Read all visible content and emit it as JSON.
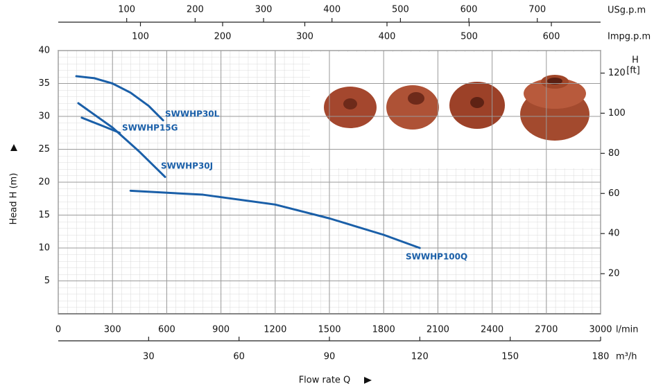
{
  "chart_data": {
    "type": "line",
    "x_label": "Flow rate Q",
    "y_label": "Head H (m)",
    "y2_label": [
      "H",
      "[ft]"
    ],
    "x_unit": "l/min",
    "xlim": [
      0,
      3000
    ],
    "xticks": [
      0,
      300,
      600,
      900,
      1200,
      1500,
      1800,
      2100,
      2400,
      2700,
      3000
    ],
    "extra_x_axes": [
      {
        "label": "m³/h",
        "xlim": [
          0,
          180
        ],
        "xticks": [
          30,
          60,
          90,
          120,
          150,
          180
        ]
      },
      {
        "label": "USg.p.m",
        "xlim": [
          0,
          792.5
        ],
        "xticks": [
          100,
          200,
          300,
          400,
          500,
          600,
          700
        ]
      },
      {
        "label": "Impg.p.m",
        "xlim": [
          0,
          659.9
        ],
        "xticks": [
          100,
          200,
          300,
          400,
          500,
          600
        ]
      }
    ],
    "ylim": [
      0,
      40
    ],
    "yticks": [
      5,
      10,
      15,
      20,
      25,
      30,
      35,
      40
    ],
    "y2lim": [
      0,
      131.23
    ],
    "y2ticks": [
      20,
      40,
      60,
      80,
      100,
      120
    ],
    "grid": true,
    "series": [
      {
        "name": "SWWHP30L",
        "color": "#1a5fa8",
        "x": [
          100,
          200,
          300,
          400,
          500,
          580
        ],
        "values": [
          36.1,
          35.8,
          35.0,
          33.6,
          31.6,
          29.4
        ]
      },
      {
        "name": "SWWHP15G",
        "color": "#1a5fa8",
        "x": [
          130,
          250,
          340
        ],
        "values": [
          29.8,
          28.5,
          27.5
        ]
      },
      {
        "name": "SWWHP30J",
        "color": "#1a5fa8",
        "x": [
          111,
          300,
          450,
          591
        ],
        "values": [
          32.0,
          28.3,
          24.6,
          20.8
        ]
      },
      {
        "name": "SWWHP100Q",
        "color": "#1a5fa8",
        "x": [
          400,
          800,
          1200,
          1500,
          1800,
          2000
        ],
        "values": [
          18.7,
          18.1,
          16.6,
          14.5,
          12.0,
          10.0
        ]
      }
    ]
  }
}
